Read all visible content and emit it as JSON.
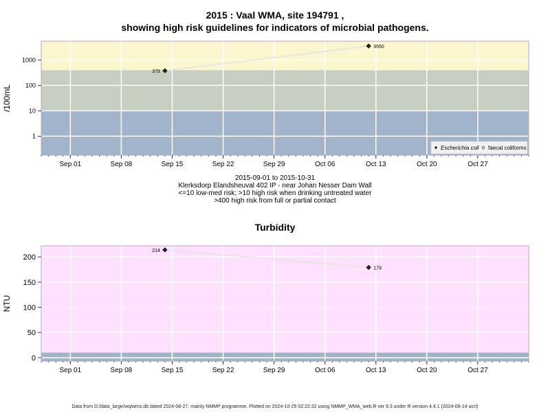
{
  "page": {
    "title_line1": "2015 : Vaal WMA, site 194791 ,",
    "title_line2": "showing high risk guidelines for indicators of microbial pathogens.",
    "date_range": "2015-09-01 to 2015-10-31",
    "site_description": "Klerksdorp Elandsheuval 402 IP - near Johan Nesser Dam Wall",
    "guideline_line1": "<=10 low-med risk; >10 high risk when drinking untreated water",
    "guideline_line2": ">400 high risk from full or partial contact",
    "footer": "Data from D:/data_large/wq/wms.db dated 2024-08-27, mainly NMMP programme. Plotted on 2024-10-25 02:22:32 using NMMP_WMA_web.R ver 9.3 under R version 4.4.1 (2024-06-14 ucrt)"
  },
  "chart_data": [
    {
      "type": "scatter",
      "title": "",
      "xlabel": "",
      "ylabel": "/100mL",
      "y_scale": "log10",
      "ylim": [
        0.18,
        5500
      ],
      "xlim": [
        "2015-08-28",
        "2015-11-03"
      ],
      "x_tick_labels": [
        "Sep 01",
        "Sep 08",
        "Sep 15",
        "Sep 22",
        "Sep 29",
        "Oct 06",
        "Oct 13",
        "Oct 20",
        "Oct 27"
      ],
      "x_tick_dates": [
        "2015-09-01",
        "2015-09-08",
        "2015-09-15",
        "2015-09-22",
        "2015-09-29",
        "2015-10-06",
        "2015-10-13",
        "2015-10-20",
        "2015-10-27"
      ],
      "y_tick_labels": [
        "1",
        "10",
        "100",
        "1000"
      ],
      "y_ticks": [
        1,
        10,
        100,
        1000
      ],
      "grid": true,
      "bands": [
        {
          "from": 0.18,
          "to": 10,
          "color": "#a2b3cc",
          "meaning": "<=10 low-med risk"
        },
        {
          "from": 10,
          "to": 400,
          "color": "#c6cfc1",
          "meaning": ">10 high risk when drinking untreated water"
        },
        {
          "from": 400,
          "to": 5500,
          "color": "#fbf6cd",
          "meaning": ">400 high risk from full or partial contact"
        }
      ],
      "series": [
        {
          "name": "Escherichia coli",
          "marker": "filled-diamond",
          "x": [
            "2015-09-14",
            "2015-10-12"
          ],
          "y": [
            379,
            3550
          ],
          "labels": [
            "379",
            "3550"
          ]
        }
      ],
      "legend": {
        "placement": "bottom-right",
        "entries": [
          {
            "label": "Escherichia coli",
            "marker": "filled-diamond",
            "italic": true
          },
          {
            "label": "faecal coliforms",
            "marker": "open-diamond",
            "italic": false
          }
        ]
      }
    },
    {
      "type": "scatter",
      "title": "Turbidity",
      "xlabel": "",
      "ylabel": "NTU",
      "y_scale": "linear",
      "ylim": [
        -7,
        222
      ],
      "xlim": [
        "2015-08-28",
        "2015-11-03"
      ],
      "x_tick_labels": [
        "Sep 01",
        "Sep 08",
        "Sep 15",
        "Sep 22",
        "Sep 29",
        "Oct 06",
        "Oct 13",
        "Oct 20",
        "Oct 27"
      ],
      "x_tick_dates": [
        "2015-09-01",
        "2015-09-08",
        "2015-09-15",
        "2015-09-22",
        "2015-09-29",
        "2015-10-06",
        "2015-10-13",
        "2015-10-20",
        "2015-10-27"
      ],
      "y_tick_labels": [
        "0",
        "50",
        "100",
        "150",
        "200"
      ],
      "y_ticks": [
        0,
        50,
        100,
        150,
        200
      ],
      "grid": true,
      "bands": [
        {
          "from": -7,
          "to": 10,
          "color": "#a2b3cc"
        },
        {
          "from": 10,
          "to": 222,
          "color": "#ffe0ff"
        }
      ],
      "series": [
        {
          "name": "",
          "marker": "filled-diamond",
          "x": [
            "2015-09-14",
            "2015-10-12"
          ],
          "y": [
            214,
            179
          ],
          "labels": [
            "214",
            "179"
          ]
        }
      ]
    }
  ]
}
